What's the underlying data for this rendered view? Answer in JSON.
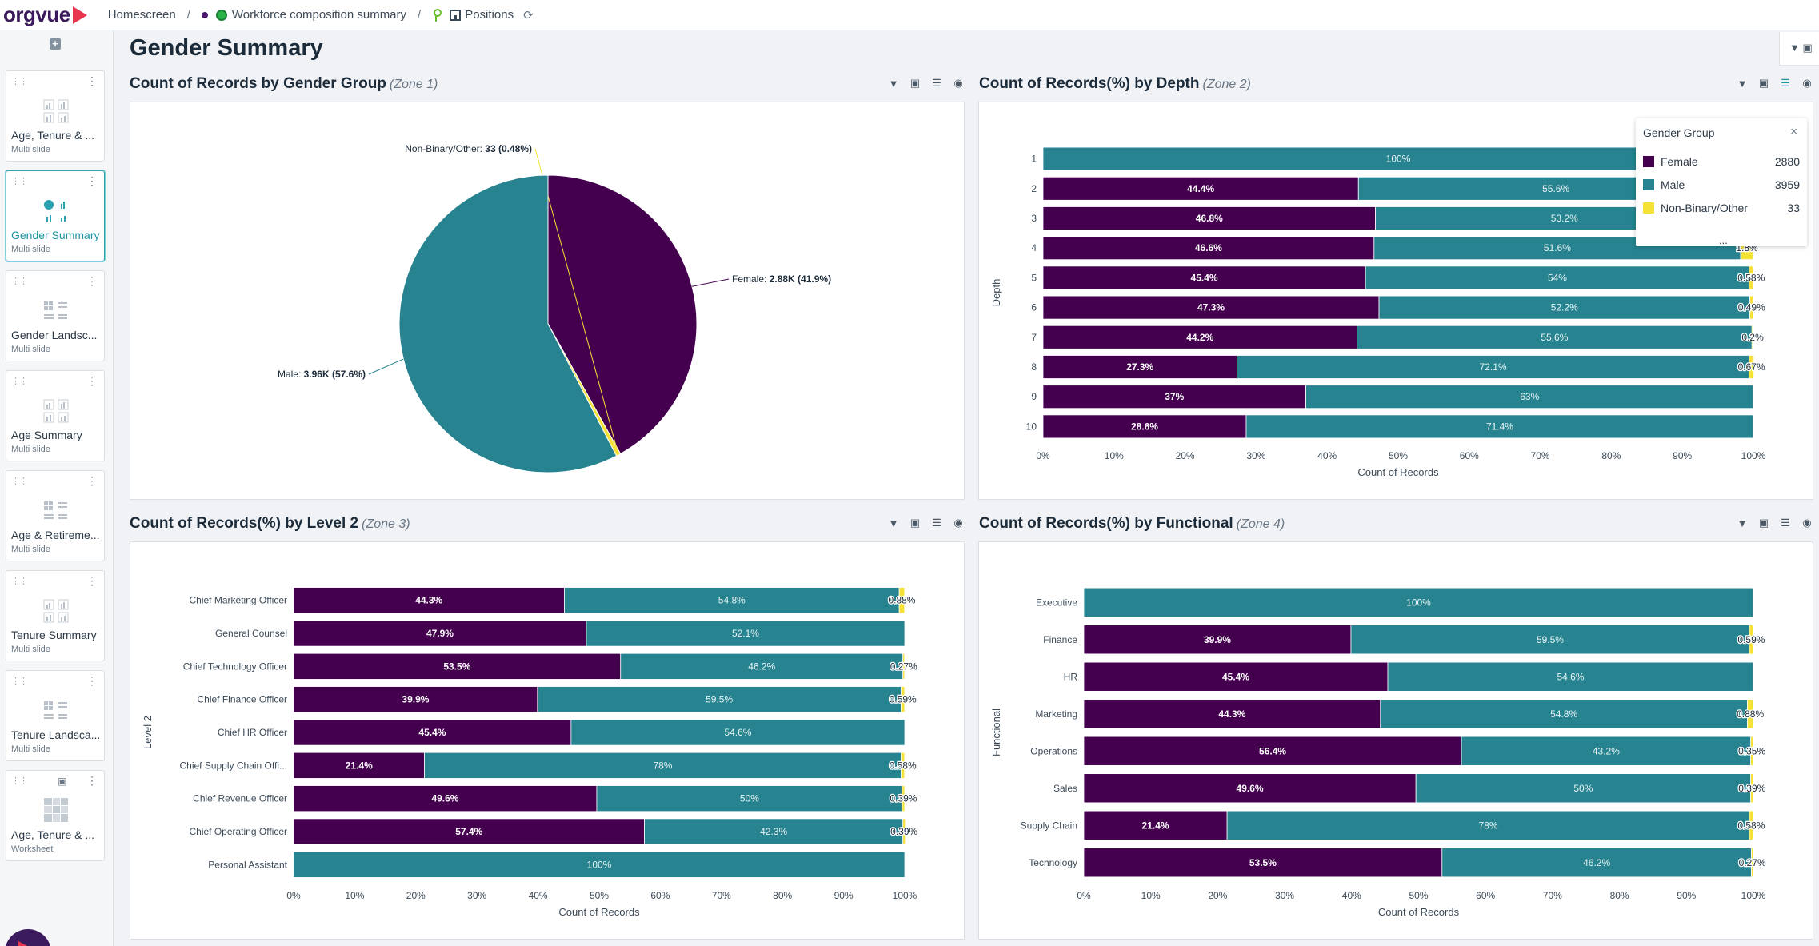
{
  "app": {
    "logo": "orgvue"
  },
  "breadcrumb": {
    "home": "Homescreen",
    "sep1": "/",
    "dataset": "Workforce composition summary",
    "sep2": "/",
    "view": "Positions"
  },
  "sidebar": {
    "items": [
      {
        "title": "Age, Tenure & ...",
        "sub": "Multi slide"
      },
      {
        "title": "Gender Summary",
        "sub": "Multi slide"
      },
      {
        "title": "Gender Landsc...",
        "sub": "Multi slide"
      },
      {
        "title": "Age Summary",
        "sub": "Multi slide"
      },
      {
        "title": "Age & Retireme...",
        "sub": "Multi slide"
      },
      {
        "title": "Tenure Summary",
        "sub": "Multi slide"
      },
      {
        "title": "Tenure Landsca...",
        "sub": "Multi slide"
      },
      {
        "title": "Age, Tenure & ...",
        "sub": "Worksheet"
      }
    ]
  },
  "page": {
    "title": "Gender Summary"
  },
  "colors": {
    "female": "#44004f",
    "male": "#26838f",
    "nonbinary": "#f4e236"
  },
  "zones": [
    {
      "title": "Count of Records by Gender Group",
      "tag": "(Zone 1)"
    },
    {
      "title": "Count of Records(%) by Depth",
      "tag": "(Zone 2)"
    },
    {
      "title": "Count of Records(%) by Level 2",
      "tag": "(Zone 3)"
    },
    {
      "title": "Count of Records(%) by Functional",
      "tag": "(Zone 4)"
    }
  ],
  "legend": {
    "title": "Gender Group",
    "close": "×",
    "more": "...",
    "items": [
      {
        "label": "Female",
        "count": "2880"
      },
      {
        "label": "Male",
        "count": "3959"
      },
      {
        "label": "Non-Binary/Other",
        "count": "33"
      }
    ]
  },
  "chart_data": [
    {
      "type": "pie",
      "title": "Count of Records by Gender Group",
      "slices": [
        {
          "name": "Female",
          "value": 2880,
          "label_name": "Female: ",
          "label_value": "2.88K (41.9%)"
        },
        {
          "name": "Non-Binary/Other",
          "value": 33,
          "label_name": "Non-Binary/Other: ",
          "label_value": "33 (0.48%)"
        },
        {
          "name": "Male",
          "value": 3959,
          "label_name": "Male: ",
          "label_value": "3.96K (57.6%)"
        }
      ]
    },
    {
      "type": "bar",
      "title": "Count of Records(%) by Depth",
      "xlabel": "Count of Records",
      "ylabel": "Depth",
      "xlim": [
        0,
        100
      ],
      "ticks": [
        "0%",
        "10%",
        "20%",
        "30%",
        "40%",
        "50%",
        "60%",
        "70%",
        "80%",
        "90%",
        "100%"
      ],
      "categories": [
        "1",
        "2",
        "3",
        "4",
        "5",
        "6",
        "7",
        "8",
        "9",
        "10"
      ],
      "series": [
        {
          "name": "Female",
          "values": [
            0,
            44.4,
            46.8,
            46.6,
            45.4,
            47.3,
            44.2,
            27.3,
            37,
            28.6
          ],
          "labels": [
            "",
            "44.4%",
            "46.8%",
            "46.6%",
            "45.4%",
            "47.3%",
            "44.2%",
            "27.3%",
            "37%",
            "28.6%"
          ]
        },
        {
          "name": "Male",
          "values": [
            100,
            55.6,
            53.2,
            51.6,
            54,
            52.2,
            55.6,
            72.1,
            63,
            71.4
          ],
          "labels": [
            "100%",
            "55.6%",
            "53.2%",
            "51.6%",
            "54%",
            "52.2%",
            "55.6%",
            "72.1%",
            "63%",
            "71.4%"
          ]
        },
        {
          "name": "Non-Binary/Other",
          "values": [
            0,
            0,
            0,
            1.8,
            0.58,
            0.49,
            0.2,
            0.67,
            0,
            0
          ],
          "labels": [
            "",
            "",
            "",
            "1.8%",
            "0.58%",
            "0.49%",
            "0.2%",
            "0.67%",
            "",
            ""
          ]
        }
      ]
    },
    {
      "type": "bar",
      "title": "Count of Records(%) by Level 2",
      "xlabel": "Count of Records",
      "ylabel": "Level 2",
      "xlim": [
        0,
        100
      ],
      "ticks": [
        "0%",
        "10%",
        "20%",
        "30%",
        "40%",
        "50%",
        "60%",
        "70%",
        "80%",
        "90%",
        "100%"
      ],
      "categories": [
        "Chief Marketing Officer",
        "General Counsel",
        "Chief Technology Officer",
        "Chief Finance Officer",
        "Chief HR Officer",
        "Chief Supply Chain Offi...",
        "Chief Revenue Officer",
        "Chief Operating Officer",
        "Personal Assistant"
      ],
      "series": [
        {
          "name": "Female",
          "values": [
            44.3,
            47.9,
            53.5,
            39.9,
            45.4,
            21.4,
            49.6,
            57.4,
            0
          ],
          "labels": [
            "44.3%",
            "47.9%",
            "53.5%",
            "39.9%",
            "45.4%",
            "21.4%",
            "49.6%",
            "57.4%",
            ""
          ]
        },
        {
          "name": "Male",
          "values": [
            54.8,
            52.1,
            46.2,
            59.5,
            54.6,
            78,
            50,
            42.3,
            100
          ],
          "labels": [
            "54.8%",
            "52.1%",
            "46.2%",
            "59.5%",
            "54.6%",
            "78%",
            "50%",
            "42.3%",
            "100%"
          ]
        },
        {
          "name": "Non-Binary/Other",
          "values": [
            0.88,
            0,
            0.27,
            0.59,
            0,
            0.58,
            0.39,
            0.39,
            0
          ],
          "labels": [
            "0.88%",
            "",
            "0.27%",
            "0.59%",
            "",
            "0.58%",
            "0.39%",
            "0.39%",
            ""
          ]
        }
      ]
    },
    {
      "type": "bar",
      "title": "Count of Records(%) by Functional",
      "xlabel": "Count of Records",
      "ylabel": "Functional",
      "xlim": [
        0,
        100
      ],
      "ticks": [
        "0%",
        "10%",
        "20%",
        "30%",
        "40%",
        "50%",
        "60%",
        "70%",
        "80%",
        "90%",
        "100%"
      ],
      "categories": [
        "Executive",
        "Finance",
        "HR",
        "Marketing",
        "Operations",
        "Sales",
        "Supply Chain",
        "Technology"
      ],
      "series": [
        {
          "name": "Female",
          "values": [
            0,
            39.9,
            45.4,
            44.3,
            56.4,
            49.6,
            21.4,
            53.5
          ],
          "labels": [
            "",
            "39.9%",
            "45.4%",
            "44.3%",
            "56.4%",
            "49.6%",
            "21.4%",
            "53.5%"
          ]
        },
        {
          "name": "Male",
          "values": [
            100,
            59.5,
            54.6,
            54.8,
            43.2,
            50,
            78,
            46.2
          ],
          "labels": [
            "100%",
            "59.5%",
            "54.6%",
            "54.8%",
            "43.2%",
            "50%",
            "78%",
            "46.2%"
          ]
        },
        {
          "name": "Non-Binary/Other",
          "values": [
            0,
            0.59,
            0,
            0.88,
            0.35,
            0.39,
            0.58,
            0.27
          ],
          "labels": [
            "",
            "0.59%",
            "",
            "0.88%",
            "0.35%",
            "0.39%",
            "0.58%",
            "0.27%"
          ]
        }
      ]
    }
  ]
}
